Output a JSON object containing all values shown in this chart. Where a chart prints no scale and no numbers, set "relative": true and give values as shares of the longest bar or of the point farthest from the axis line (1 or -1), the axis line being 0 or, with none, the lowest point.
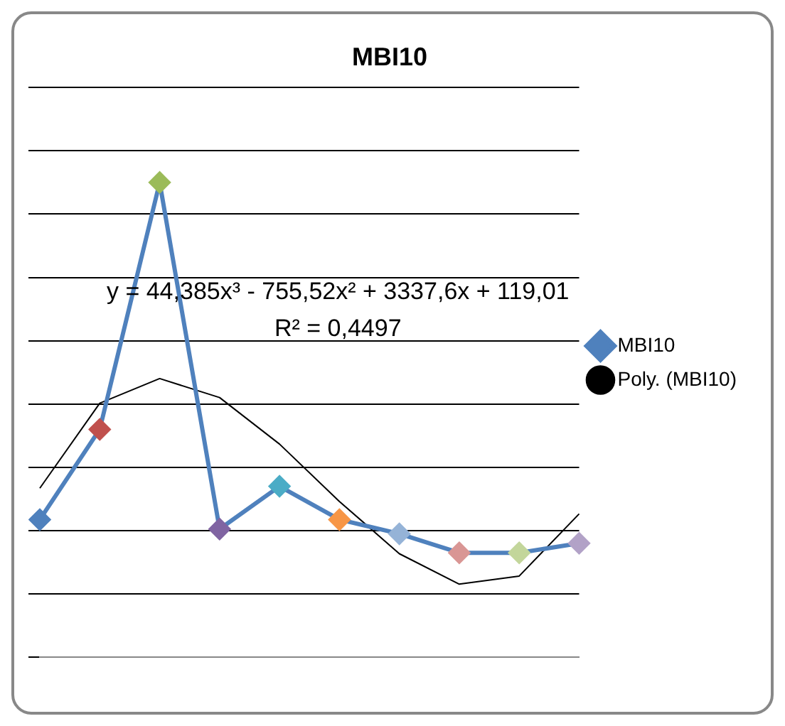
{
  "chart_data": {
    "type": "line",
    "title": "MBI10",
    "relative": true,
    "categories": [
      null,
      null,
      null,
      null,
      null,
      null,
      null,
      null,
      null,
      null
    ],
    "grid": "y",
    "legend": "right",
    "annotations": [
      "y = 44,385x³ - 755,52x² + 3337,6x + 119,01",
      "R² = 0,4497"
    ],
    "series": [
      {
        "name": "MBI10",
        "color": "#4f81bd",
        "marker": "diamond",
        "values": [
          0.29,
          0.48,
          1,
          0.27,
          0.36,
          0.29,
          0.26,
          0.22,
          0.22,
          0.24
        ],
        "colors": [
          "#4f81bd",
          "#c0504d",
          "#9bbb59",
          "#8064a2",
          "#4bacc6",
          "#f79646",
          "#95b3d7",
          "#d99694",
          "#c3d69b",
          "#b2a2c7"
        ]
      },
      {
        "name": "Poly. (MBI10)",
        "color": "#000000",
        "marker": "none",
        "values": [
          0.356,
          0.535,
          0.587,
          0.547,
          0.449,
          0.328,
          0.218,
          0.154,
          0.171,
          0.302
        ]
      }
    ]
  }
}
